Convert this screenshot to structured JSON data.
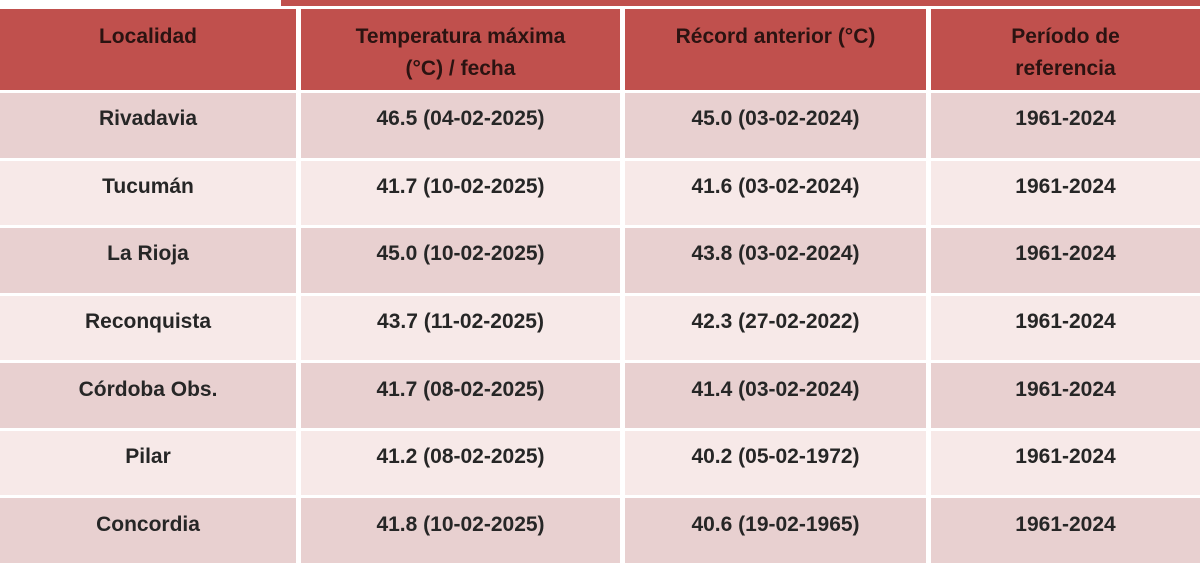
{
  "colors": {
    "header_bg": "#c0504d",
    "header_text": "#2b1311",
    "row_band_dark": "#e8d0d0",
    "row_band_light": "#f7e9e8",
    "body_text": "#262626",
    "separator": "#ffffff"
  },
  "table": {
    "headers": [
      {
        "label": "Localidad"
      },
      {
        "label": "Temperatura máxima\n(°C) / fecha"
      },
      {
        "label": "Récord anterior (°C)"
      },
      {
        "label": "Período de\nreferencia"
      }
    ],
    "rows": [
      [
        "Rivadavia",
        "46.5 (04-02-2025)",
        "45.0 (03-02-2024)",
        "1961-2024"
      ],
      [
        "Tucumán",
        "41.7 (10-02-2025)",
        "41.6 (03-02-2024)",
        "1961-2024"
      ],
      [
        "La Rioja",
        "45.0 (10-02-2025)",
        "43.8 (03-02-2024)",
        "1961-2024"
      ],
      [
        "Reconquista",
        "43.7 (11-02-2025)",
        "42.3 (27-02-2022)",
        "1961-2024"
      ],
      [
        "Córdoba Obs.",
        "41.7 (08-02-2025)",
        "41.4 (03-02-2024)",
        "1961-2024"
      ],
      [
        "Pilar",
        "41.2 (08-02-2025)",
        "40.2 (05-02-1972)",
        "1961-2024"
      ],
      [
        "Concordia",
        "41.8 (10-02-2025)",
        "40.6 (19-02-1965)",
        "1961-2024"
      ]
    ]
  },
  "chart_data": {
    "type": "table",
    "columns": [
      "Localidad",
      "Temperatura máxima (°C) / fecha",
      "Récord anterior (°C)",
      "Período de referencia"
    ],
    "rows": [
      [
        "Rivadavia",
        "46.5 (04-02-2025)",
        "45.0 (03-02-2024)",
        "1961-2024"
      ],
      [
        "Tucumán",
        "41.7 (10-02-2025)",
        "41.6 (03-02-2024)",
        "1961-2024"
      ],
      [
        "La Rioja",
        "45.0 (10-02-2025)",
        "43.8 (03-02-2024)",
        "1961-2024"
      ],
      [
        "Reconquista",
        "43.7 (11-02-2025)",
        "42.3 (27-02-2022)",
        "1961-2024"
      ],
      [
        "Córdoba Obs.",
        "41.7 (08-02-2025)",
        "41.4 (03-02-2024)",
        "1961-2024"
      ],
      [
        "Pilar",
        "41.2 (08-02-2025)",
        "40.2 (05-02-1972)",
        "1961-2024"
      ],
      [
        "Concordia",
        "41.8 (10-02-2025)",
        "40.6 (19-02-1965)",
        "1961-2024"
      ]
    ],
    "record_temperatures_c": [
      46.5,
      41.7,
      45.0,
      43.7,
      41.7,
      41.2,
      41.8
    ],
    "previous_records_c": [
      45.0,
      41.6,
      43.8,
      42.3,
      41.4,
      40.2,
      40.6
    ],
    "reference_period": "1961-2024"
  }
}
